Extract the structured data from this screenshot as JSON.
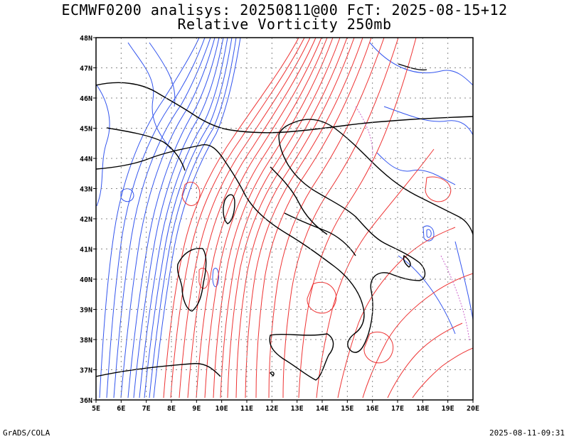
{
  "header": {
    "title_line1": "ECMWF0200 analisys: 20250811@00 FcT: 2025-08-15+12",
    "title_line2": "Relative Vorticity 250mb"
  },
  "map": {
    "lon_labels": [
      "5E",
      "6E",
      "7E",
      "8E",
      "9E",
      "10E",
      "11E",
      "12E",
      "13E",
      "14E",
      "15E",
      "16E",
      "17E",
      "18E",
      "19E",
      "20E"
    ],
    "lat_labels": [
      "48N",
      "47N",
      "46N",
      "45N",
      "44N",
      "43N",
      "42N",
      "41N",
      "40N",
      "39N",
      "38N",
      "37N",
      "36N"
    ],
    "lon_range": [
      5,
      20
    ],
    "lat_range": [
      36,
      48
    ],
    "gridlines": true,
    "colors": {
      "negative_contours": "#3355ee",
      "positive_contours": "#ee3333",
      "zero_contours": "#cc66cc",
      "coastlines": "#000000"
    }
  },
  "footer": {
    "left": "GrADS/COLA",
    "right": "2025-08-11-09:31"
  }
}
